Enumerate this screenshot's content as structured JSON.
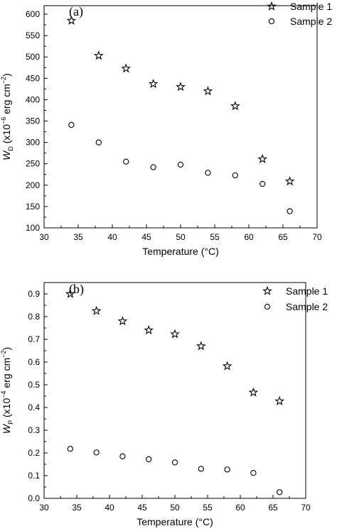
{
  "chart_data": [
    {
      "type": "scatter",
      "panel_label": "(a)",
      "xlabel": "Temperature (°C)",
      "ylabel": {
        "sym": "W",
        "sub": "D",
        "pre": " (x10",
        "exp1": "−6",
        "mid": " erg cm",
        "exp2": "−2",
        "post": ")"
      },
      "xlim": [
        30,
        70
      ],
      "ylim": [
        100,
        620
      ],
      "xticks": [
        30,
        35,
        40,
        45,
        50,
        55,
        60,
        65,
        70
      ],
      "yticks": [
        100,
        150,
        200,
        250,
        300,
        350,
        400,
        450,
        500,
        550,
        600
      ],
      "grid": false,
      "legend_position": "top-right",
      "series": [
        {
          "name": "Sample 1",
          "marker": "star",
          "x": [
            34,
            38,
            42,
            46,
            50,
            54,
            58,
            62,
            66
          ],
          "y": [
            585,
            503,
            473,
            437,
            430,
            420,
            385,
            261,
            209
          ]
        },
        {
          "name": "Sample 2",
          "marker": "circle",
          "x": [
            34,
            38,
            42,
            46,
            50,
            54,
            58,
            62,
            66
          ],
          "y": [
            341,
            300,
            255,
            242,
            248,
            229,
            223,
            203,
            139
          ]
        }
      ]
    },
    {
      "type": "scatter",
      "panel_label": "(b)",
      "xlabel": "Temperature (°C)",
      "ylabel": {
        "sym": "W",
        "sub": "P",
        "pre": " (x10",
        "exp1": "−4",
        "mid": " erg cm",
        "exp2": "−2",
        "post": ")"
      },
      "xlim": [
        30,
        70
      ],
      "ylim": [
        0.0,
        0.95
      ],
      "xticks": [
        30,
        35,
        40,
        45,
        50,
        55,
        60,
        65,
        70
      ],
      "yticks": [
        "0.0",
        "0.1",
        "0.2",
        "0.3",
        "0.4",
        "0.5",
        "0.6",
        "0.7",
        "0.8",
        "0.9"
      ],
      "grid": false,
      "legend_position": "top-right",
      "series": [
        {
          "name": "Sample 1",
          "marker": "star",
          "x": [
            34,
            38,
            42,
            46,
            50,
            54,
            58,
            62,
            66
          ],
          "y": [
            0.9,
            0.825,
            0.78,
            0.74,
            0.723,
            0.67,
            0.582,
            0.466,
            0.428
          ]
        },
        {
          "name": "Sample 2",
          "marker": "circle",
          "x": [
            34,
            38,
            42,
            46,
            50,
            54,
            58,
            62,
            66
          ],
          "y": [
            0.218,
            0.202,
            0.185,
            0.172,
            0.158,
            0.13,
            0.127,
            0.112,
            0.027
          ]
        }
      ]
    }
  ]
}
